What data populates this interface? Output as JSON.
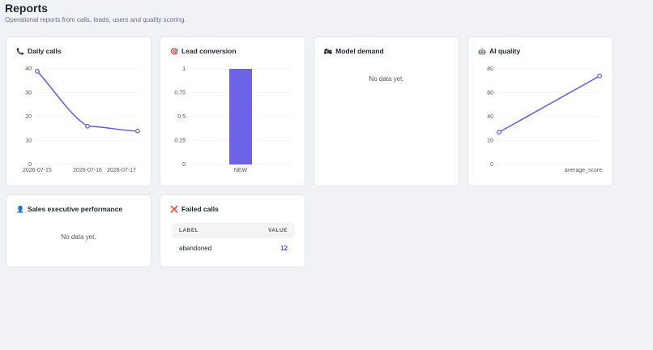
{
  "header": {
    "title": "Reports",
    "subtitle": "Operational reports from calls, leads, users and quality scoring."
  },
  "cards": [
    {
      "icon": "📞",
      "title": "Daily calls",
      "chart": {
        "type": "line",
        "smooth": true,
        "x": [
          "2026-07-15",
          "2026-07-16",
          "2026-07-17"
        ],
        "values": [
          39,
          16,
          14
        ],
        "color": "#6c63d9",
        "ylim": [
          0,
          40
        ],
        "yticks": [
          0,
          10,
          20,
          30,
          40
        ],
        "grid": true
      }
    },
    {
      "icon": "🎯",
      "title": "Lead conversion",
      "chart": {
        "type": "bar",
        "categories": [
          "NEW"
        ],
        "values": [
          1
        ],
        "color": "#6c63e8",
        "ylim": [
          0,
          1
        ],
        "yticks": [
          0,
          0.25,
          0.5,
          0.75,
          1
        ],
        "grid": true
      }
    },
    {
      "icon": "🏍",
      "title": "Model demand",
      "empty": "No data yet."
    },
    {
      "icon": "🤖",
      "title": "AI quality",
      "chart": {
        "type": "line",
        "smooth": false,
        "x": [
          null,
          "average_score"
        ],
        "values": [
          27,
          74
        ],
        "color": "#6c63d9",
        "ylim": [
          0,
          80
        ],
        "yticks": [
          0,
          20,
          40,
          60,
          80
        ],
        "grid": true
      }
    },
    {
      "icon": "👤",
      "title": "Sales executive performance",
      "empty": "No data yet."
    },
    {
      "icon": "❌",
      "title": "Failed calls",
      "table": {
        "columns": [
          "LABEL",
          "VALUE"
        ],
        "rows": [
          [
            "abandoned",
            "12"
          ]
        ]
      }
    }
  ]
}
